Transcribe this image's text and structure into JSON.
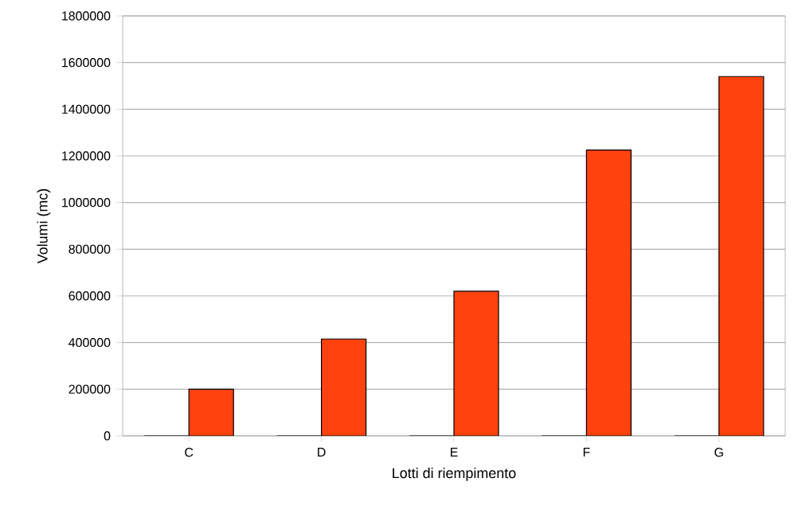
{
  "chart_data": {
    "type": "bar",
    "xlabel": "Lotti di riempimento",
    "ylabel": "Volumi (mc)",
    "categories": [
      "C",
      "D",
      "E",
      "F",
      "G"
    ],
    "series": [
      {
        "color": "#004586",
        "values": [
          0,
          0,
          0,
          0,
          0
        ]
      },
      {
        "color": "#ff420e",
        "values": [
          200000,
          415000,
          620000,
          1225000,
          1540000
        ]
      }
    ],
    "ylim": [
      0,
      1800000
    ],
    "yticks": [
      0,
      200000,
      400000,
      600000,
      800000,
      1000000,
      1200000,
      1400000,
      1600000,
      1800000
    ],
    "grid": "y"
  }
}
